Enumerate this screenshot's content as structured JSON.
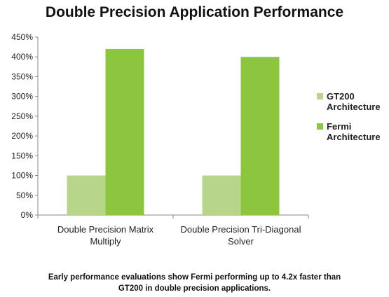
{
  "chart_data": {
    "type": "bar",
    "title": "Double Precision Application Performance",
    "categories": [
      [
        "Double Precision Matrix",
        "Multiply"
      ],
      [
        "Double Precision Tri-Diagonal",
        "Solver"
      ]
    ],
    "series": [
      {
        "name": [
          "GT200",
          "Architecture"
        ],
        "color": "#b8d68a",
        "values": [
          100,
          100
        ]
      },
      {
        "name": [
          "Fermi",
          "Architecture"
        ],
        "color": "#8cc63f",
        "values": [
          420,
          400
        ]
      }
    ],
    "ylim": [
      0,
      450
    ],
    "yticks": [
      0,
      50,
      100,
      150,
      200,
      250,
      300,
      350,
      400,
      450
    ],
    "ytick_suffix": "%",
    "grid": false,
    "legend": "right"
  },
  "caption": {
    "line1": "Early performance evaluations show Fermi performing up to 4.2x faster than",
    "line2": "GT200 in double precision applications."
  }
}
